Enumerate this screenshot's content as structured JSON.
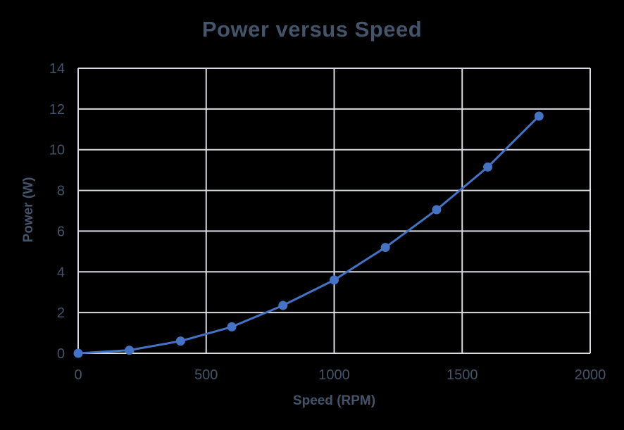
{
  "chart": {
    "title": "Power versus Speed",
    "x_axis_title": "Speed (RPM)",
    "y_axis_title": "Power (W)"
  },
  "chart_data": {
    "type": "line",
    "title": "Power versus Speed",
    "xlabel": "Speed (RPM)",
    "ylabel": "Power (W)",
    "x": [
      0,
      200,
      400,
      600,
      800,
      1000,
      1200,
      1400,
      1600,
      1800
    ],
    "y": [
      0,
      0.15,
      0.6,
      1.3,
      2.35,
      3.6,
      5.2,
      7.05,
      9.15,
      11.65
    ],
    "xlim": [
      0,
      2000
    ],
    "ylim": [
      0,
      14
    ],
    "x_ticks": [
      0,
      500,
      1000,
      1500,
      2000
    ],
    "y_ticks": [
      0,
      2,
      4,
      6,
      8,
      10,
      12,
      14
    ],
    "grid": true,
    "legend": false,
    "marker": "circle",
    "series_name": "Power",
    "colors": {
      "background": "#000000",
      "gridline": "#D9DBE2",
      "series": "#4472C4",
      "text": "#44546A"
    }
  }
}
